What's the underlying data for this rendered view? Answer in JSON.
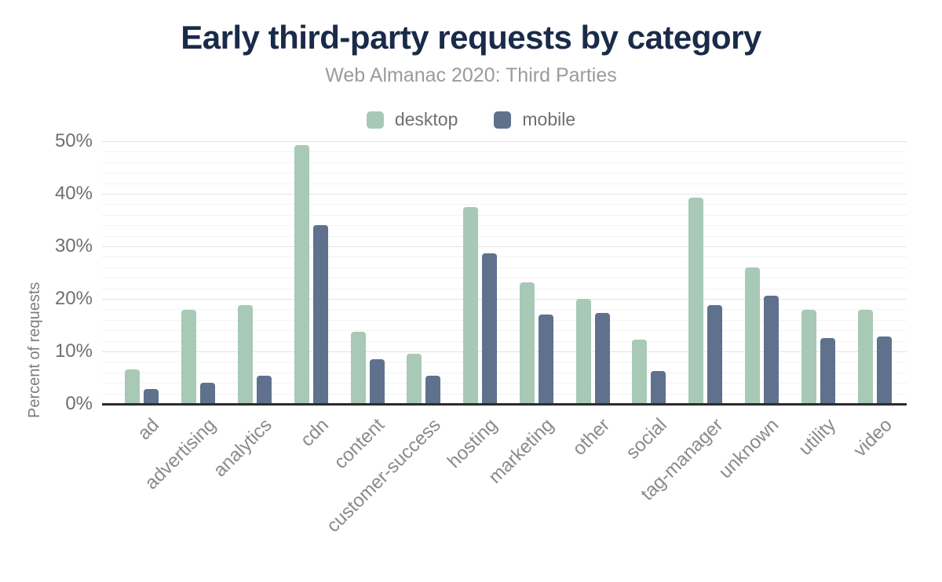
{
  "chart_data": {
    "type": "bar",
    "title": "Early third-party requests by category",
    "subtitle": "Web Almanac 2020: Third Parties",
    "ylabel": "Percent of requests",
    "xlabel": "",
    "ylim": [
      0,
      50
    ],
    "ytick_labels": [
      "0%",
      "10%",
      "20%",
      "30%",
      "40%",
      "50%"
    ],
    "ytick_step": 10,
    "minor_grid_step": 2,
    "grid": "horizontal",
    "legend_position": "top-center",
    "categories": [
      "ad",
      "advertising",
      "analytics",
      "cdn",
      "content",
      "customer-success",
      "hosting",
      "marketing",
      "other",
      "social",
      "tag-manager",
      "unknown",
      "utility",
      "video"
    ],
    "series": [
      {
        "name": "desktop",
        "color": "#a7c9b6",
        "values": [
          6.5,
          17.9,
          18.8,
          49.2,
          13.7,
          9.5,
          37.5,
          23.2,
          20.0,
          12.2,
          39.3,
          25.9,
          17.9,
          17.9
        ]
      },
      {
        "name": "mobile",
        "color": "#5f718d",
        "values": [
          2.9,
          4.1,
          5.3,
          34.0,
          8.5,
          5.3,
          28.6,
          17.0,
          17.3,
          6.2,
          18.8,
          20.6,
          12.5,
          12.8
        ]
      }
    ]
  },
  "colors": {
    "title": "#1a2b49",
    "subtitle": "#9b9b9b",
    "tick_text": "#6f6f6f",
    "x_label_text": "#8a8a8a",
    "y_title_text": "#7d7d7d",
    "gridline_major": "#e3e3e3",
    "gridline_minor": "#f3f3f3",
    "baseline": "#2b2b2b",
    "background": "#ffffff"
  }
}
